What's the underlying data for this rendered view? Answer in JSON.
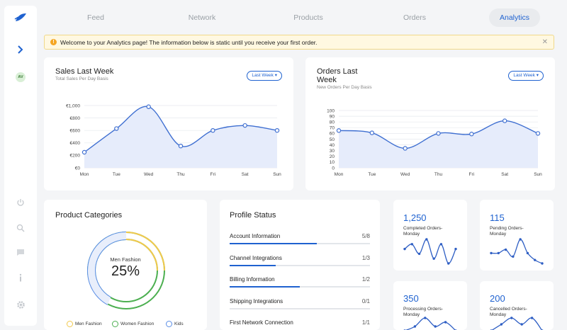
{
  "nav": {
    "tabs": [
      {
        "label": "Feed"
      },
      {
        "label": "Network"
      },
      {
        "label": "Products"
      },
      {
        "label": "Orders"
      },
      {
        "label": "Analytics"
      }
    ],
    "active": "Analytics"
  },
  "sidebar": {
    "avatar_initials": "AV"
  },
  "banner": {
    "text": "Welcome to your Analytics page! The information below is static until you receive your first order."
  },
  "sales": {
    "title": "Sales Last Week",
    "subtitle": "Total Sales Per Day Basis",
    "filter_label": "Last Week"
  },
  "orders": {
    "title_line1": "Orders Last",
    "title_line2": "Week",
    "subtitle": "New Orders Per Day Basis",
    "filter_label": "Last Week"
  },
  "categories": {
    "title": "Product Categories",
    "center_label": "Men Fashion",
    "center_value": "25%",
    "legend": [
      {
        "label": "Men Fashion",
        "color": "#f2c94c"
      },
      {
        "label": "Women Fashion",
        "color": "#4caf50"
      },
      {
        "label": "Kids",
        "color": "#5b8ee6"
      }
    ]
  },
  "profile": {
    "title": "Profile Status",
    "items": [
      {
        "label": "Account Information",
        "value": "5/8",
        "progress": 0.62
      },
      {
        "label": "Channel Integrations",
        "value": "1/3",
        "progress": 0.33
      },
      {
        "label": "Billing Information",
        "value": "1/2",
        "progress": 0.5
      },
      {
        "label": "Shipping Integrations",
        "value": "0/1",
        "progress": 0
      },
      {
        "label": "First Network Connection",
        "value": "1/1",
        "progress": 1
      }
    ]
  },
  "stats": [
    {
      "value": "1,250",
      "label": "Completed Orders-Monday",
      "spark": [
        5,
        6,
        4,
        7,
        3,
        6,
        2,
        5
      ]
    },
    {
      "value": "115",
      "label": "Pending Orders-Monday",
      "spark": [
        4,
        4,
        5,
        3,
        8,
        4,
        2,
        1
      ]
    },
    {
      "value": "350",
      "label": "Processing Orders-Monday",
      "spark": [
        2,
        3,
        5,
        3,
        4,
        2
      ]
    },
    {
      "value": "200",
      "label": "Cancelled Orders-Monday",
      "spark": [
        2,
        3,
        4,
        3,
        4,
        2
      ]
    }
  ],
  "chart_data": [
    {
      "type": "area",
      "title": "Sales Last Week",
      "subtitle": "Total Sales Per Day Basis",
      "categories": [
        "Mon",
        "Tue",
        "Wed",
        "Thu",
        "Fri",
        "Sat",
        "Sun"
      ],
      "values": [
        250,
        630,
        980,
        350,
        600,
        680,
        600
      ],
      "yticks": [
        "€0",
        "€200",
        "€400",
        "€600",
        "€800",
        "€1,000"
      ],
      "ylim": [
        0,
        1000
      ],
      "color": "#3f6fd1"
    },
    {
      "type": "area",
      "title": "Orders Last Week",
      "subtitle": "New Orders Per Day Basis",
      "categories": [
        "Mon",
        "Tue",
        "Wed",
        "Thu",
        "Fri",
        "Sat",
        "Sun"
      ],
      "values": [
        65,
        61,
        34,
        60,
        59,
        82,
        60
      ],
      "yticks": [
        "0",
        "10",
        "20",
        "30",
        "40",
        "50",
        "60",
        "70",
        "80",
        "90",
        "100"
      ],
      "ylim": [
        0,
        100
      ],
      "color": "#3f6fd1"
    }
  ]
}
